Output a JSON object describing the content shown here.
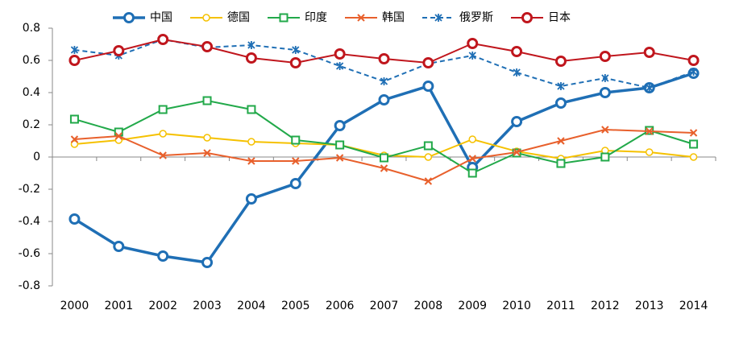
{
  "chart_data": {
    "type": "line",
    "categories": [
      "2000",
      "2001",
      "2002",
      "2003",
      "2004",
      "2005",
      "2006",
      "2007",
      "2008",
      "2009",
      "2010",
      "2011",
      "2012",
      "2013",
      "2014"
    ],
    "series": [
      {
        "name": "中国",
        "color": "#1f6fb5",
        "marker": "circle",
        "dash": false,
        "values": [
          -0.385,
          -0.555,
          -0.615,
          -0.655,
          -0.26,
          -0.165,
          0.195,
          0.355,
          0.44,
          -0.065,
          0.22,
          0.335,
          0.4,
          0.43,
          0.52
        ]
      },
      {
        "name": "德国",
        "color": "#f5c100",
        "marker": "small-circle",
        "dash": false,
        "values": [
          0.08,
          0.105,
          0.145,
          0.12,
          0.095,
          0.085,
          0.075,
          0.01,
          0,
          0.11,
          0.035,
          -0.01,
          0.04,
          0.03,
          0
        ]
      },
      {
        "name": "印度",
        "color": "#22a94a",
        "marker": "square",
        "dash": false,
        "values": [
          0.235,
          0.155,
          0.295,
          0.35,
          0.295,
          0.105,
          0.075,
          -0.005,
          0.07,
          -0.1,
          0.025,
          -0.04,
          0,
          0.165,
          0.08
        ]
      },
      {
        "name": "韩国",
        "color": "#e8602c",
        "marker": "cross",
        "dash": false,
        "values": [
          0.11,
          0.13,
          0.01,
          0.025,
          -0.025,
          -0.025,
          -0.005,
          -0.07,
          -0.15,
          -0.01,
          0.03,
          0.1,
          0.17,
          0.16,
          0.15
        ]
      },
      {
        "name": "俄罗斯",
        "color": "#1f6fb5",
        "marker": "star",
        "dash": true,
        "values": [
          0.665,
          0.63,
          0.73,
          0.68,
          0.695,
          0.665,
          0.565,
          0.47,
          0.58,
          0.63,
          0.525,
          0.44,
          0.49,
          0.43,
          0.53
        ]
      },
      {
        "name": "日本",
        "color": "#c0161d",
        "marker": "circle",
        "dash": false,
        "values": [
          0.6,
          0.66,
          0.73,
          0.685,
          0.615,
          0.585,
          0.64,
          0.61,
          0.585,
          0.705,
          0.655,
          0.595,
          0.625,
          0.65,
          0.6
        ]
      }
    ],
    "ylim": [
      -0.8,
      0.8
    ],
    "yticks": [
      -0.8,
      -0.6,
      -0.4,
      -0.2,
      0,
      0.2,
      0.4,
      0.6,
      0.8
    ],
    "grid": false
  }
}
